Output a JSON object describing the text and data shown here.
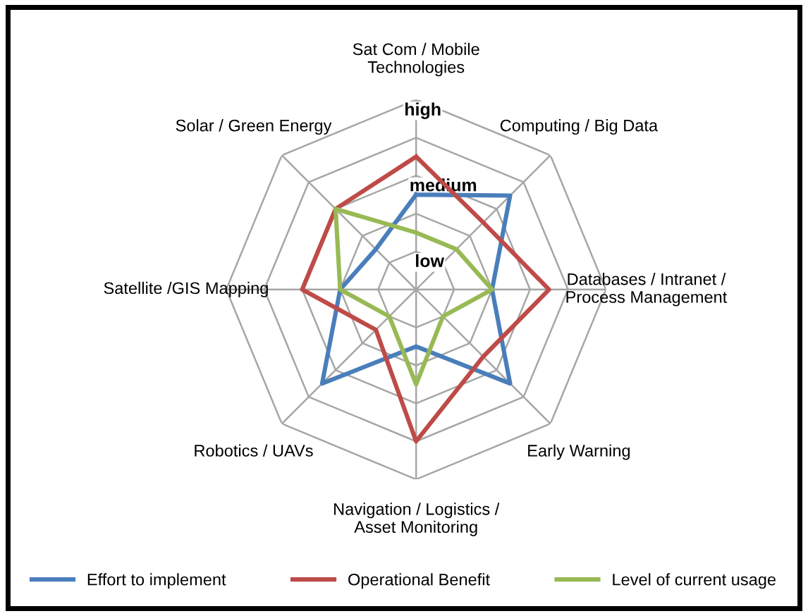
{
  "chart_data": {
    "type": "radar",
    "categories": [
      "Sat Com / Mobile\nTechnologies",
      "Computing / Big Data",
      "Databases / Intranet /\nProcess Management",
      "Early Warning",
      "Navigation / Logistics /\nAsset Monitoring",
      "Robotics / UAVs",
      "Satellite /GIS Mapping",
      "Solar / Green Energy"
    ],
    "series": [
      {
        "name": "Effort to implement",
        "color": "#4a7ebb",
        "values": [
          2.5,
          3.5,
          2,
          3.5,
          1.5,
          3.5,
          2,
          1.5
        ]
      },
      {
        "name": "Operational Benefit",
        "color": "#be4b48",
        "values": [
          3.5,
          2.5,
          3.5,
          2.5,
          4,
          1.5,
          3,
          3
        ]
      },
      {
        "name": "Level of current usage",
        "color": "#98b954",
        "values": [
          1.5,
          1.5,
          2,
          1,
          2.5,
          1,
          2,
          3
        ]
      }
    ],
    "ylim": [
      0,
      5
    ],
    "yticks": [
      {
        "value": 0.5,
        "label": "low"
      },
      {
        "value": 2.5,
        "label": "medium"
      },
      {
        "value": 4.5,
        "label": "high"
      }
    ],
    "grid": true,
    "legend": "bottom",
    "marker": "none",
    "line_style": "solid"
  }
}
